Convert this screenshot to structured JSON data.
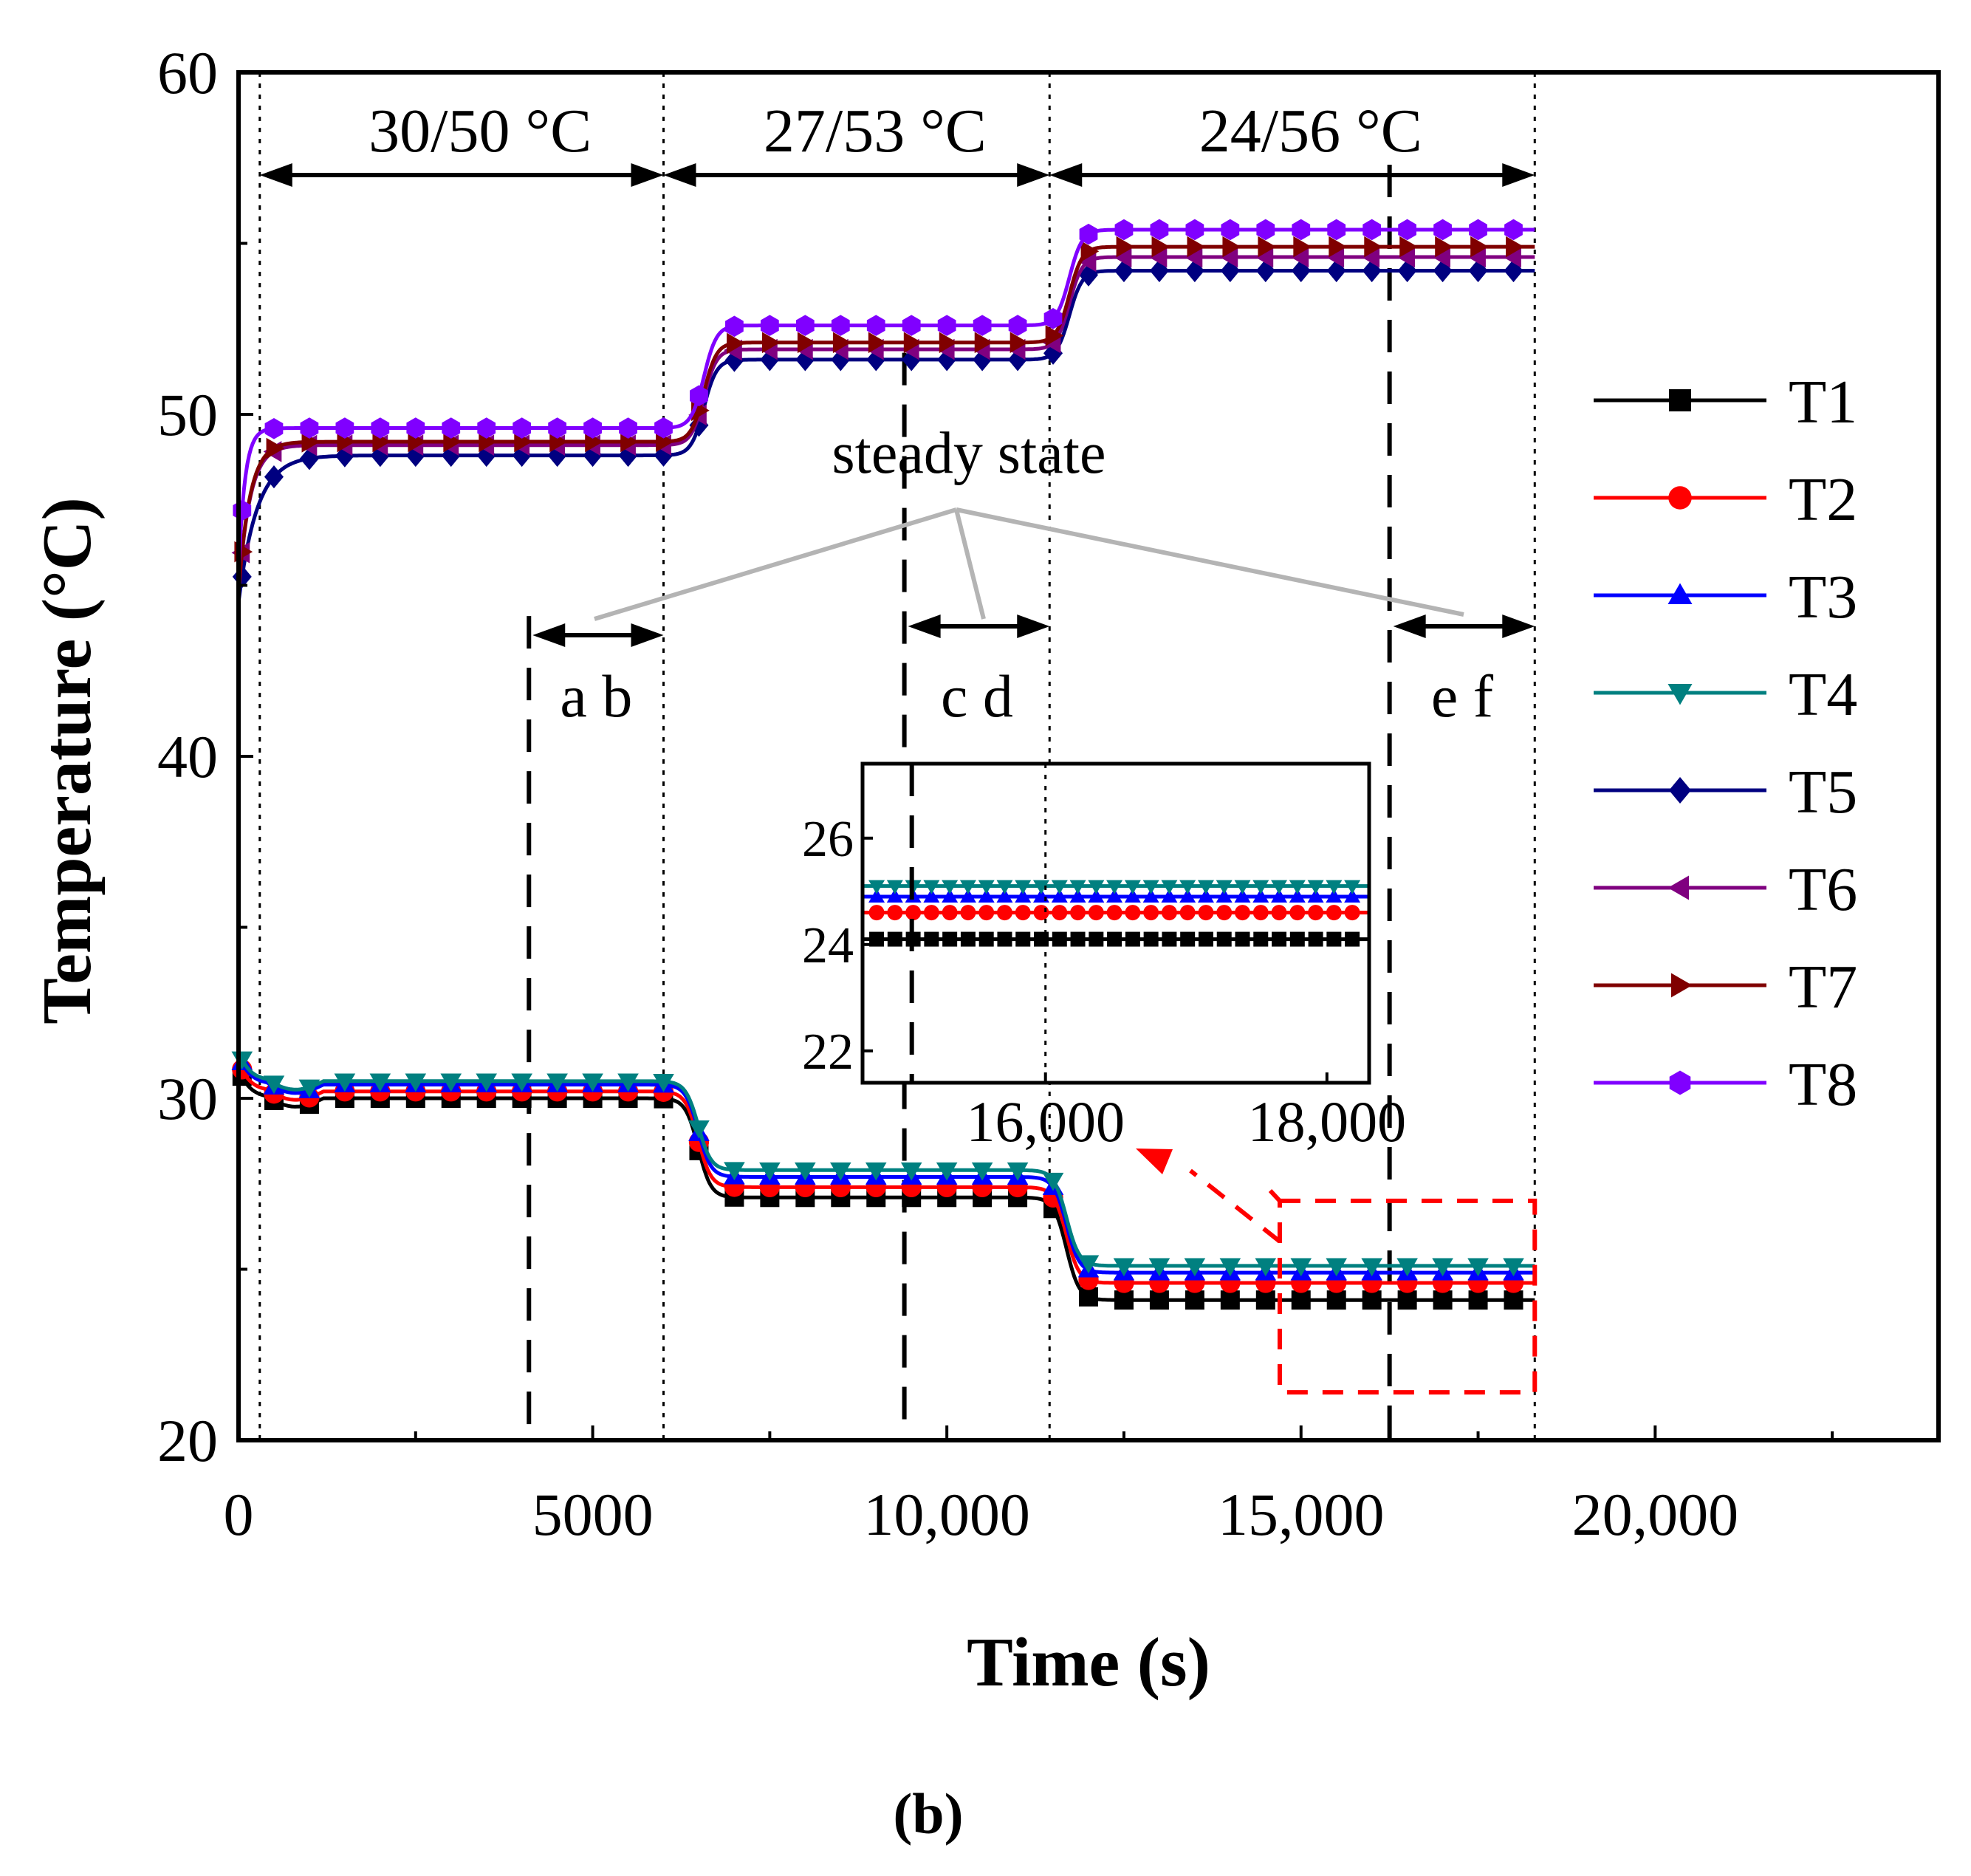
{
  "chart_data": {
    "type": "line",
    "panel_label": "(b)",
    "xlabel": "Time (s)",
    "ylabel": "Temperature (°C)",
    "xlim": [
      0,
      24000
    ],
    "ylim": [
      20,
      60
    ],
    "x_ticks": [
      0,
      5000,
      10000,
      15000,
      20000
    ],
    "x_tick_labels": [
      "0",
      "5000",
      "10,000",
      "15,000",
      "20,000"
    ],
    "y_ticks": [
      20,
      30,
      40,
      50,
      60
    ],
    "y_tick_labels": [
      "20",
      "30",
      "40",
      "50",
      "60"
    ],
    "stages": [
      {
        "label": "30/50 °C",
        "start": 300,
        "end": 6000
      },
      {
        "label": "27/53 °C",
        "start": 6000,
        "end": 11450
      },
      {
        "label": "24/56 °C",
        "start": 11450,
        "end": 18300
      }
    ],
    "steady_state": {
      "label": "steady state",
      "windows": [
        {
          "label": "a b",
          "start": 4100,
          "end": 6000
        },
        {
          "label": "c d",
          "start": 9400,
          "end": 11450
        },
        {
          "label": "e f",
          "start": 16250,
          "end": 18300
        }
      ]
    },
    "series": [
      {
        "name": "T1",
        "color": "#000000",
        "marker": "square",
        "stage_values": [
          30.0,
          27.1,
          24.1
        ]
      },
      {
        "name": "T2",
        "color": "#ff0000",
        "marker": "circle",
        "stage_values": [
          30.2,
          27.4,
          24.6
        ]
      },
      {
        "name": "T3",
        "color": "#0000ff",
        "marker": "triangle-up",
        "stage_values": [
          30.4,
          27.7,
          24.9
        ]
      },
      {
        "name": "T4",
        "color": "#008080",
        "marker": "triangle-down",
        "stage_values": [
          30.5,
          27.9,
          25.1
        ]
      },
      {
        "name": "T5",
        "color": "#000080",
        "marker": "diamond",
        "stage_values": [
          48.8,
          51.6,
          54.2
        ]
      },
      {
        "name": "T6",
        "color": "#800080",
        "marker": "triangle-left",
        "stage_values": [
          49.1,
          51.9,
          54.6
        ]
      },
      {
        "name": "T7",
        "color": "#800000",
        "marker": "triangle-right",
        "stage_values": [
          49.2,
          52.1,
          54.9
        ]
      },
      {
        "name": "T8",
        "color": "#8000ff",
        "marker": "hexagon",
        "stage_values": [
          49.6,
          52.6,
          55.4
        ]
      }
    ],
    "inset": {
      "xlim": [
        14700,
        18300
      ],
      "ylim": [
        21.4,
        27.4
      ],
      "x_ticks": [
        16000,
        18000
      ],
      "x_tick_labels": [
        "16,000",
        "18,000"
      ],
      "y_ticks": [
        22,
        24,
        26
      ],
      "y_tick_labels": [
        "22",
        "24",
        "26"
      ],
      "series_shown": [
        "T1",
        "T2",
        "T3",
        "T4"
      ],
      "source_xrange": [
        14700,
        18300
      ],
      "source_yrange": [
        21.4,
        27.0
      ]
    },
    "legend_position": "right"
  }
}
